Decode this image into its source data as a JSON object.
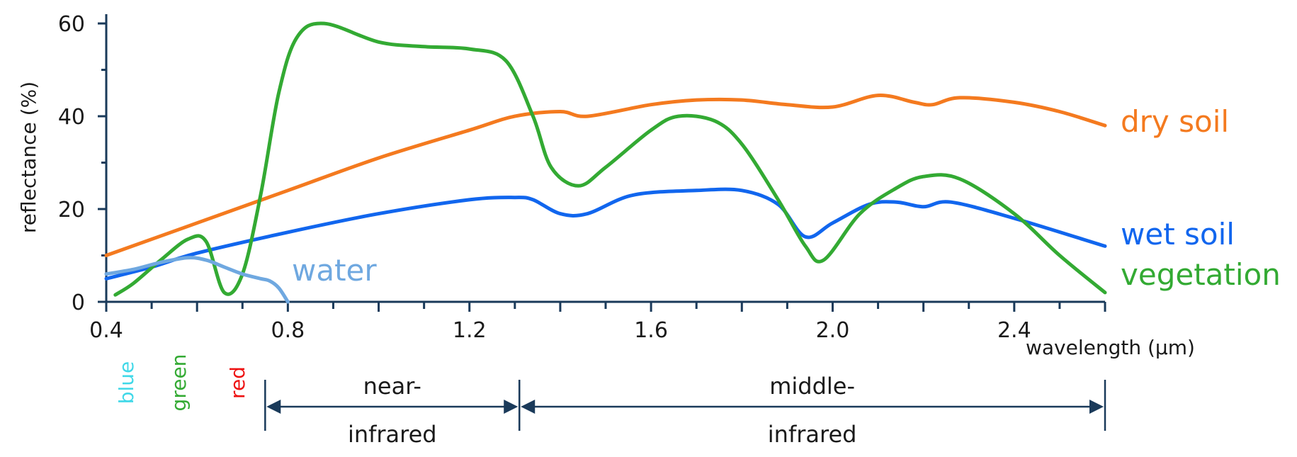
{
  "chart_data": {
    "type": "line",
    "title": "",
    "xlabel": "wavelength (μm)",
    "ylabel": "reflectance (%)",
    "xlim": [
      0.4,
      2.6
    ],
    "ylim": [
      0,
      62
    ],
    "xticks": [
      {
        "value": 0.4,
        "label": "0.4"
      },
      {
        "value": 0.8,
        "label": "0.8"
      },
      {
        "value": 1.2,
        "label": "1.2"
      },
      {
        "value": 1.6,
        "label": "1.6"
      },
      {
        "value": 2.0,
        "label": "2.0"
      },
      {
        "value": 2.4,
        "label": "2.4"
      }
    ],
    "yticks": [
      {
        "value": 0,
        "label": "0"
      },
      {
        "value": 20,
        "label": "20"
      },
      {
        "value": 40,
        "label": "40"
      },
      {
        "value": 60,
        "label": "60"
      }
    ],
    "series": [
      {
        "name": "dry soil",
        "color": "#f47a1f",
        "x": [
          0.4,
          0.6,
          0.8,
          1.0,
          1.2,
          1.3,
          1.4,
          1.46,
          1.6,
          1.7,
          1.8,
          1.9,
          2.0,
          2.1,
          2.18,
          2.22,
          2.28,
          2.4,
          2.5,
          2.6
        ],
        "y": [
          10,
          17,
          24,
          31,
          37,
          40,
          41,
          40,
          42.5,
          43.5,
          43.5,
          42.5,
          42,
          44.5,
          43,
          42.5,
          44,
          43,
          41,
          38
        ]
      },
      {
        "name": "wet soil",
        "color": "#1166ee",
        "x": [
          0.4,
          0.5,
          0.6,
          0.8,
          1.0,
          1.2,
          1.3,
          1.34,
          1.4,
          1.46,
          1.56,
          1.7,
          1.8,
          1.88,
          1.94,
          2.0,
          2.08,
          2.14,
          2.2,
          2.26,
          2.4,
          2.6
        ],
        "y": [
          5,
          7.5,
          10.5,
          15,
          19,
          22,
          22.5,
          22,
          19,
          19,
          23,
          24,
          24,
          21,
          14,
          17,
          21,
          21.5,
          20.5,
          21.5,
          18,
          12
        ]
      },
      {
        "name": "vegetation",
        "color": "#33aa33",
        "x": [
          0.42,
          0.46,
          0.52,
          0.58,
          0.62,
          0.66,
          0.7,
          0.74,
          0.78,
          0.82,
          0.88,
          1.0,
          1.1,
          1.2,
          1.28,
          1.34,
          1.38,
          1.44,
          1.5,
          1.6,
          1.66,
          1.74,
          1.8,
          1.88,
          1.94,
          1.98,
          2.06,
          2.14,
          2.2,
          2.28,
          2.4,
          2.5,
          2.6
        ],
        "y": [
          1.5,
          4,
          9,
          13.5,
          13,
          2,
          6,
          23,
          45,
          57,
          60,
          56,
          55,
          54.5,
          52,
          40,
          29,
          25,
          29,
          37,
          40,
          39,
          34,
          22,
          12,
          9,
          19,
          24.5,
          27,
          26.5,
          19,
          10,
          2
        ]
      },
      {
        "name": "water",
        "color": "#6fa8e0",
        "x": [
          0.4,
          0.46,
          0.52,
          0.58,
          0.62,
          0.66,
          0.7,
          0.74,
          0.76,
          0.78,
          0.8
        ],
        "y": [
          6,
          7,
          8.5,
          9.5,
          9,
          7.5,
          6,
          5,
          4.5,
          3,
          0
        ]
      }
    ],
    "color_bands": [
      {
        "label": "blue",
        "color": "#40d8e8"
      },
      {
        "label": "green",
        "color": "#33aa33"
      },
      {
        "label": "red",
        "color": "#ee1111"
      }
    ],
    "spectral_regions": [
      {
        "line1": "near-",
        "line2": "infrared",
        "x_range": [
          0.75,
          1.31
        ]
      },
      {
        "line1": "middle-",
        "line2": "infrared",
        "x_range": [
          1.31,
          2.6
        ]
      }
    ],
    "grid": false,
    "legend": "inline labels at line ends"
  }
}
